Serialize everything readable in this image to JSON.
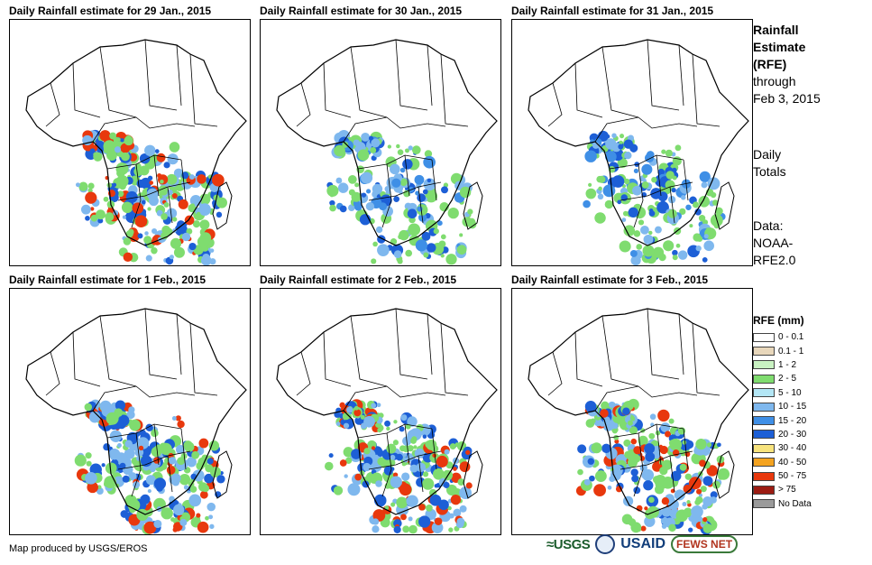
{
  "panels": [
    {
      "title": "Daily Rainfall estimate for 29 Jan., 2015",
      "rain_level": "heavy"
    },
    {
      "title": "Daily Rainfall estimate for 30 Jan., 2015",
      "rain_level": "moderate"
    },
    {
      "title": "Daily Rainfall estimate for 31 Jan., 2015",
      "rain_level": "moderate"
    },
    {
      "title": "Daily Rainfall estimate for 1 Feb., 2015",
      "rain_level": "heavy"
    },
    {
      "title": "Daily Rainfall estimate for 2 Feb., 2015",
      "rain_level": "heavy"
    },
    {
      "title": "Daily Rainfall estimate for 3 Feb., 2015",
      "rain_level": "heavy"
    }
  ],
  "sidebar": {
    "heading_line1": "Rainfall",
    "heading_line2": "Estimate",
    "heading_line3": "(RFE)",
    "through_line1": "through",
    "through_line2": "Feb 3, 2015",
    "totals_line1": "Daily",
    "totals_line2": "Totals",
    "data_line1": "Data:",
    "data_line2": "NOAA-",
    "data_line3": "RFE2.0"
  },
  "legend": {
    "title": "RFE (mm)",
    "items": [
      {
        "label": "0 - 0.1",
        "color": "#ffffff"
      },
      {
        "label": "0.1 - 1",
        "color": "#e8d7bb"
      },
      {
        "label": "1 - 2",
        "color": "#c9f2c2"
      },
      {
        "label": "2 - 5",
        "color": "#7fdc6f"
      },
      {
        "label": "5 - 10",
        "color": "#b3e6f5"
      },
      {
        "label": "10 - 15",
        "color": "#7fb8ee"
      },
      {
        "label": "15 - 20",
        "color": "#3f8fe6"
      },
      {
        "label": "20 - 30",
        "color": "#1d5fd6"
      },
      {
        "label": "30 - 40",
        "color": "#f7e37d"
      },
      {
        "label": "40 - 50",
        "color": "#f4a320"
      },
      {
        "label": "50 - 75",
        "color": "#e8380d"
      },
      {
        "label": "> 75",
        "color": "#9c1c13"
      },
      {
        "label": "No Data",
        "color": "#9a9a9a"
      }
    ]
  },
  "footer": {
    "credit": "Map produced by USGS/EROS"
  },
  "logos": {
    "usgs": "≈USGS",
    "usaid": "USAID",
    "fews": "FEWS NET"
  }
}
